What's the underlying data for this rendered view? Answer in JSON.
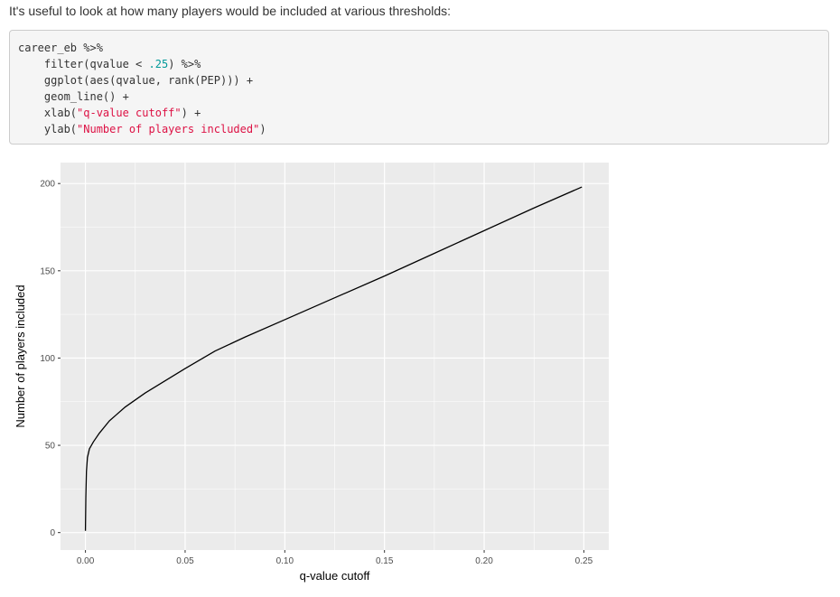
{
  "intro_text": "It's useful to look at how many players would be included at various thresholds:",
  "code": [
    [
      {
        "t": "career_eb %>%",
        "c": ""
      }
    ],
    [
      {
        "t": "    filter(qvalue < ",
        "c": ""
      },
      {
        "t": ".25",
        "c": "num"
      },
      {
        "t": ") %>%",
        "c": ""
      }
    ],
    [
      {
        "t": "    ggplot(aes(qvalue, rank(PEP))) +",
        "c": ""
      }
    ],
    [
      {
        "t": "    geom_line() +",
        "c": ""
      }
    ],
    [
      {
        "t": "    xlab(",
        "c": ""
      },
      {
        "t": "\"q-value cutoff\"",
        "c": "str"
      },
      {
        "t": ") +",
        "c": ""
      }
    ],
    [
      {
        "t": "    ylab(",
        "c": ""
      },
      {
        "t": "\"Number of players included\"",
        "c": "str"
      },
      {
        "t": ")",
        "c": ""
      }
    ]
  ],
  "colors": {
    "panel_bg": "#ebebeb",
    "grid": "#ffffff",
    "line": "#000000",
    "tick_text": "#4d4d4d",
    "code_num": "#009999",
    "code_str": "#dd1144"
  },
  "chart_data": {
    "type": "line",
    "title": "",
    "xlabel": "q-value cutoff",
    "ylabel": "Number of players included",
    "xlim": [
      -0.0125,
      0.2625
    ],
    "ylim": [
      -10,
      212
    ],
    "x_ticks": [
      0.0,
      0.05,
      0.1,
      0.15,
      0.2,
      0.25
    ],
    "x_tick_labels": [
      "0.00",
      "0.05",
      "0.10",
      "0.15",
      "0.20",
      "0.25"
    ],
    "y_ticks": [
      0,
      50,
      100,
      150,
      200
    ],
    "y_tick_labels": [
      "0",
      "50",
      "100",
      "150",
      "200"
    ],
    "grid": true,
    "legend": "none",
    "series": [
      {
        "x": [
          0.0,
          0.0002,
          0.0005,
          0.001,
          0.002,
          0.004,
          0.007,
          0.012,
          0.02,
          0.03,
          0.04,
          0.05,
          0.065,
          0.08,
          0.1,
          0.12,
          0.15,
          0.175,
          0.2,
          0.225,
          0.249
        ],
        "y": [
          1,
          20,
          35,
          43,
          48,
          52,
          57,
          64,
          72,
          80,
          87,
          94,
          104,
          112,
          122,
          132,
          147,
          160,
          173,
          186,
          198
        ]
      }
    ]
  }
}
